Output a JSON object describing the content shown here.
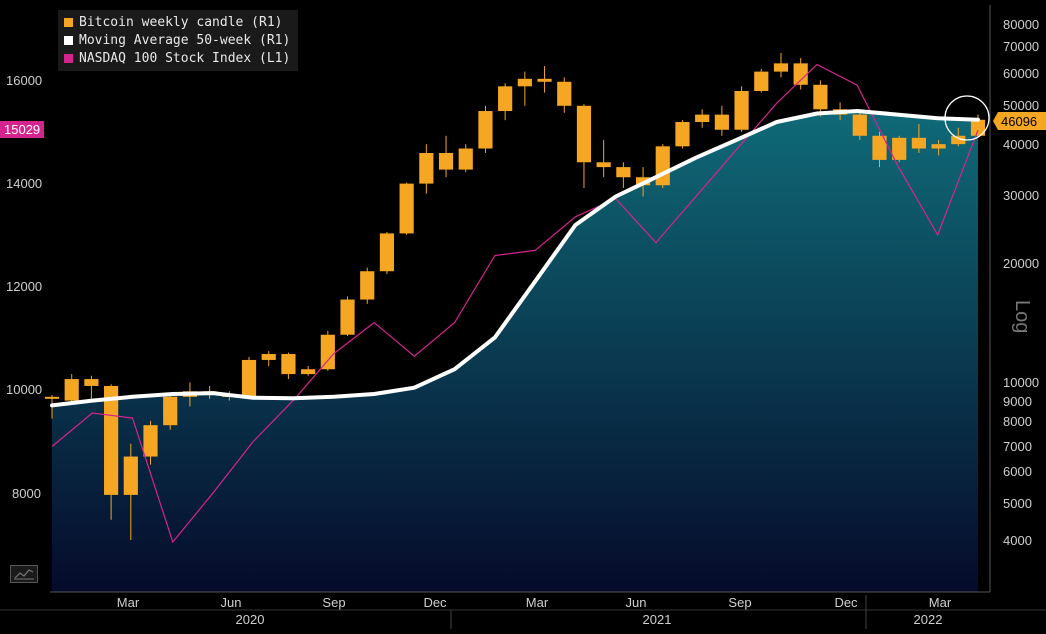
{
  "chart_data": {
    "type": "candlestick",
    "scale_label": "Log",
    "colors": {
      "candle": "#f5a623",
      "moving_average": "#ffffff",
      "nasdaq": "#d6248f",
      "area_top": "#0f6a78",
      "area_bottom": "#050b2a"
    },
    "legend": [
      {
        "label": "Bitcoin weekly candle (R1)",
        "color": "#f5a623"
      },
      {
        "label": "Moving Average 50-week (R1)",
        "color": "#ffffff"
      },
      {
        "label": "NASDAQ 100 Stock Index  (L1)",
        "color": "#d6248f"
      }
    ],
    "left_axis": {
      "ticks": [
        "16000",
        "14000",
        "12000",
        "10000",
        "8000"
      ],
      "current_label": "15029",
      "current_color": "#d6248f"
    },
    "right_axis": {
      "ticks": [
        "80000",
        "70000",
        "60000",
        "50000",
        "40000",
        "30000",
        "20000",
        "10000",
        "9000",
        "8000",
        "7000",
        "6000",
        "5000",
        "4000"
      ],
      "current_label": "46096",
      "current_color": "#f5a623"
    },
    "x_axis": {
      "months": [
        "Mar",
        "Jun",
        "Sep",
        "Dec",
        "Mar",
        "Jun",
        "Sep",
        "Dec",
        "Mar"
      ],
      "years": [
        "2020",
        "2021",
        "2022"
      ]
    },
    "series": [
      {
        "name": "Moving Average 50-week (R1)",
        "values": [
          8750,
          9000,
          9200,
          9350,
          9400,
          9150,
          9120,
          9200,
          9350,
          9700,
          10800,
          13000,
          18000,
          25000,
          29500,
          33000,
          37000,
          41000,
          45500,
          47800,
          48500,
          47500,
          46500,
          46096
        ]
      },
      {
        "name": "NASDAQ 100 Stock Index  (L1)",
        "values": [
          8900,
          9550,
          9450,
          7050,
          8000,
          9000,
          9800,
          10700,
          11300,
          10650,
          11300,
          12600,
          12700,
          13350,
          13700,
          12850,
          13750,
          14650,
          15550,
          16300,
          15900,
          14350,
          13000,
          15029
        ]
      }
    ],
    "candles": [
      [
        9200,
        9300,
        8100,
        9100
      ],
      [
        9000,
        10500,
        8900,
        10200
      ],
      [
        10200,
        10400,
        9000,
        9800
      ],
      [
        9800,
        9900,
        4500,
        5200
      ],
      [
        5200,
        7000,
        4000,
        6500
      ],
      [
        6500,
        8000,
        6200,
        7800
      ],
      [
        7800,
        9300,
        7600,
        9200
      ],
      [
        9200,
        10000,
        8700,
        9500
      ],
      [
        9500,
        9800,
        9100,
        9300
      ],
      [
        9300,
        9500,
        9000,
        9200
      ],
      [
        9200,
        11600,
        9100,
        11400
      ],
      [
        11400,
        12000,
        11000,
        11800
      ],
      [
        11800,
        11900,
        10200,
        10500
      ],
      [
        10500,
        11000,
        10400,
        10800
      ],
      [
        10800,
        13500,
        10700,
        13200
      ],
      [
        13200,
        16500,
        13100,
        16200
      ],
      [
        16200,
        19500,
        15800,
        19100
      ],
      [
        19100,
        24000,
        18800,
        23800
      ],
      [
        23800,
        32000,
        23600,
        31800
      ],
      [
        31800,
        40000,
        30000,
        38000
      ],
      [
        38000,
        42000,
        33000,
        34500
      ],
      [
        34500,
        40000,
        34000,
        39000
      ],
      [
        39000,
        50000,
        38000,
        48500
      ],
      [
        48500,
        57000,
        46000,
        56000
      ],
      [
        56000,
        61000,
        50000,
        58500
      ],
      [
        58500,
        63000,
        54000,
        57500
      ],
      [
        57500,
        59000,
        48000,
        50000
      ],
      [
        50000,
        50500,
        31000,
        36000
      ],
      [
        36000,
        41000,
        33000,
        35000
      ],
      [
        35000,
        36000,
        31000,
        33000
      ],
      [
        33000,
        35000,
        29500,
        31500
      ],
      [
        31500,
        40000,
        31000,
        39500
      ],
      [
        39500,
        46000,
        39000,
        45500
      ],
      [
        45500,
        49000,
        44000,
        47500
      ],
      [
        47500,
        50000,
        42000,
        43500
      ],
      [
        43500,
        56000,
        43000,
        54500
      ],
      [
        54500,
        62000,
        54000,
        61000
      ],
      [
        61000,
        68000,
        59000,
        64000
      ],
      [
        64000,
        66000,
        55000,
        56500
      ],
      [
        56500,
        58000,
        47000,
        49000
      ],
      [
        49000,
        51000,
        46000,
        47500
      ],
      [
        47500,
        48000,
        41000,
        42000
      ],
      [
        42000,
        43000,
        35000,
        36500
      ],
      [
        36500,
        42000,
        36000,
        41500
      ],
      [
        41500,
        45000,
        38000,
        39000
      ],
      [
        39000,
        41000,
        37500,
        40000
      ],
      [
        40000,
        44000,
        39500,
        42000
      ],
      [
        42000,
        47500,
        41500,
        46096
      ]
    ]
  }
}
